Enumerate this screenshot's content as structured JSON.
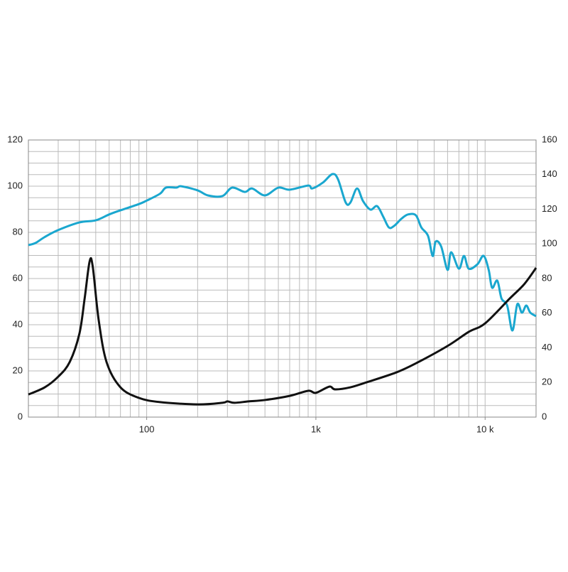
{
  "chart_data": {
    "type": "line",
    "xscale": "log",
    "grid": true,
    "xlim": [
      20,
      20000
    ],
    "xticks": [
      100,
      {
        "value": 1000,
        "label": "1k"
      },
      {
        "value": 10000,
        "label": "10 k"
      }
    ],
    "xgrid": [
      20,
      30,
      40,
      50,
      60,
      70,
      80,
      90,
      100,
      200,
      300,
      400,
      500,
      600,
      700,
      800,
      900,
      1000,
      2000,
      3000,
      4000,
      5000,
      6000,
      7000,
      8000,
      9000,
      10000,
      20000
    ],
    "ylim": [
      0,
      120
    ],
    "yticks": [
      0,
      20,
      40,
      60,
      80,
      100,
      120
    ],
    "ygrid": [
      0,
      5,
      10,
      15,
      20,
      25,
      30,
      35,
      40,
      45,
      50,
      55,
      60,
      65,
      70,
      75,
      80,
      85,
      90,
      95,
      100,
      105,
      110,
      115,
      120
    ],
    "y2lim": [
      0,
      160
    ],
    "y2ticks": [
      0,
      20,
      40,
      60,
      80,
      100,
      120,
      140,
      160
    ],
    "series": [
      {
        "color": "#1aa7cf",
        "axis": "y2",
        "x": [
          20,
          22,
          25,
          30,
          40,
          50,
          60,
          70,
          90,
          100,
          120,
          130,
          150,
          160,
          200,
          230,
          280,
          320,
          380,
          420,
          500,
          600,
          700,
          900,
          950,
          1100,
          1250,
          1350,
          1500,
          1600,
          1750,
          1900,
          2100,
          2300,
          2500,
          2700,
          2900,
          3200,
          3500,
          3900,
          4200,
          4600,
          4900,
          5100,
          5500,
          6000,
          6300,
          7000,
          7500,
          8000,
          9000,
          9800,
          10500,
          11000,
          11800,
          12500,
          13500,
          14500,
          15500,
          16500,
          17500,
          18500,
          20000
        ],
        "values": [
          99.3,
          100.5,
          104,
          108,
          112.4,
          113.6,
          117,
          119.4,
          123,
          125,
          129,
          132.5,
          132.5,
          133.3,
          130.9,
          128,
          127.6,
          132.5,
          130,
          132,
          128,
          132.5,
          131.3,
          133.7,
          132,
          135.4,
          140.3,
          137.4,
          123.9,
          123.9,
          132,
          124.7,
          119.8,
          121.8,
          115.7,
          109.5,
          110.4,
          114.5,
          117,
          116.5,
          109.5,
          104.6,
          93,
          101.3,
          98.5,
          85,
          95.2,
          85.7,
          93.1,
          85.7,
          88.2,
          93.1,
          85,
          74.7,
          78.8,
          68.5,
          64.4,
          50,
          65.2,
          60.3,
          64.4,
          60.3,
          58.3
        ]
      },
      {
        "color": "#111111",
        "x": [
          20,
          25,
          30,
          35,
          40,
          43,
          46,
          48,
          52,
          58,
          70,
          90,
          120,
          200,
          280,
          300,
          330,
          400,
          500,
          700,
          900,
          1000,
          1200,
          1300,
          1600,
          2000,
          3000,
          4000,
          6000,
          8000,
          10000,
          14000,
          17000,
          20000
        ],
        "values": [
          9.8,
          12.9,
          17.5,
          23.7,
          36,
          51.4,
          67.4,
          65.2,
          42.2,
          23.7,
          12.9,
          8.3,
          6.5,
          5.5,
          6.2,
          6.8,
          6.2,
          6.8,
          7.4,
          9.2,
          11.4,
          10.5,
          13.2,
          12,
          12.9,
          15.1,
          19.4,
          23.7,
          30.8,
          36.9,
          40.6,
          51.4,
          57.5,
          64.6
        ]
      }
    ]
  }
}
